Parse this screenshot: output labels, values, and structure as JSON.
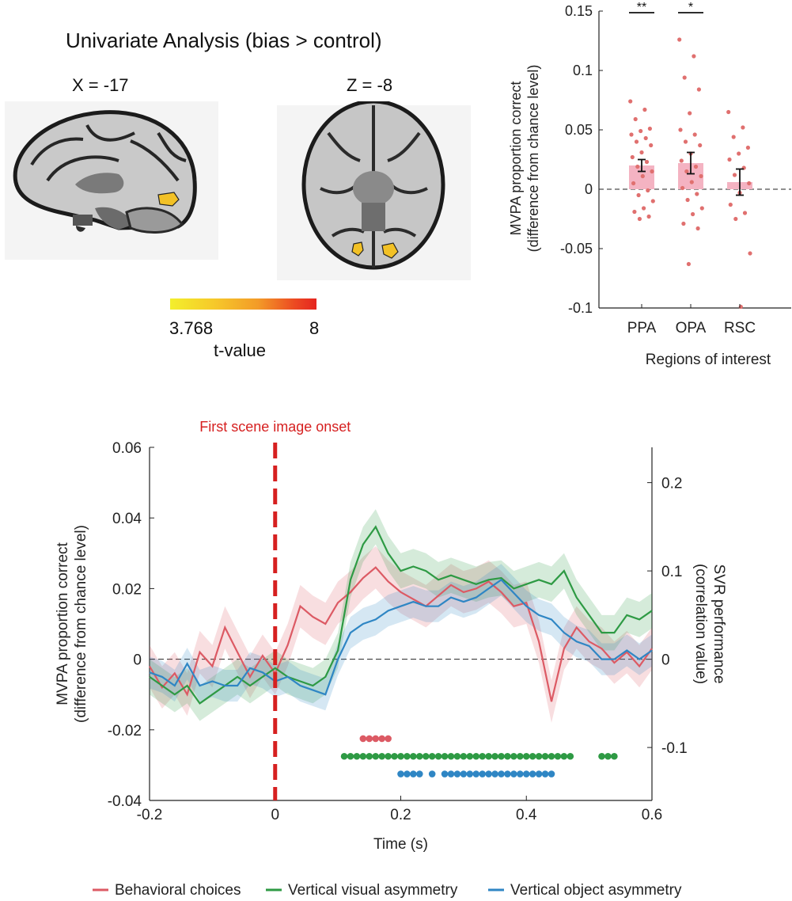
{
  "univariate": {
    "title": "Univariate Analysis (bias > control)",
    "sagittal_label": "X = -17",
    "axial_label": "Z = -8",
    "colorbar": {
      "min": "3.768",
      "max": "8",
      "label": "t-value",
      "colors": [
        "#f3ef2c",
        "#f39b28",
        "#e52520"
      ]
    }
  },
  "chart_data": [
    {
      "type": "bar",
      "title": "",
      "xlabel": "Regions of interest",
      "ylabel": [
        "MVPA proportion correct",
        "(difference from chance level)"
      ],
      "categories": [
        "PPA",
        "OPA",
        "RSC"
      ],
      "values": [
        0.02,
        0.022,
        0.006
      ],
      "sem": [
        0.005,
        0.009,
        0.011
      ],
      "significance": [
        "**",
        "*",
        ""
      ],
      "ylim": [
        -0.1,
        0.15
      ],
      "yticks": [
        -0.1,
        -0.05,
        0,
        0.05,
        0.1,
        0.15
      ],
      "ytick_labels": [
        "-0.1",
        "-0.05",
        "0",
        "0.05",
        "0.1",
        "0.15"
      ],
      "bar_color": "#f4b3c2",
      "point_color": "#e0706f",
      "individual_points": [
        [
          0.074,
          0.067,
          0.059,
          0.051,
          0.049,
          0.046,
          0.043,
          0.04,
          0.037,
          0.031,
          0.027,
          0.023,
          0.019,
          0.015,
          0.011,
          0.005,
          -0.001,
          -0.005,
          -0.01,
          -0.016,
          -0.019,
          -0.023,
          -0.025
        ],
        [
          0.126,
          0.112,
          0.094,
          0.084,
          0.064,
          0.05,
          0.046,
          0.04,
          0.037,
          0.03,
          0.024,
          0.019,
          0.015,
          0.011,
          0.006,
          0.001,
          -0.004,
          -0.009,
          -0.016,
          -0.021,
          -0.029,
          -0.033,
          -0.063
        ],
        [
          0.065,
          0.052,
          0.044,
          0.035,
          0.03,
          0.025,
          0.018,
          0.012,
          0.005,
          -0.003,
          -0.013,
          -0.02,
          -0.025,
          -0.054,
          -0.099
        ]
      ]
    },
    {
      "type": "line",
      "title": "",
      "xlabel": "Time (s)",
      "ylabel": [
        "MVPA proportion correct",
        "(difference from chance level)"
      ],
      "y2label": [
        "SVR performance",
        "(correlation value)"
      ],
      "annotation": "First scene image onset",
      "xlim": [
        -0.2,
        0.6
      ],
      "ylim": [
        -0.04,
        0.06
      ],
      "y2lim": [
        -0.16,
        0.24
      ],
      "xticks": [
        -0.2,
        0,
        0.2,
        0.4,
        0.6
      ],
      "xtick_labels": [
        "-0.2",
        "0",
        "0.2",
        "0.4",
        "0.6"
      ],
      "yticks": [
        -0.04,
        -0.02,
        0,
        0.02,
        0.04,
        0.06
      ],
      "ytick_labels": [
        "-0.04",
        "-0.02",
        "0",
        "0.02",
        "0.04",
        "0.06"
      ],
      "y2ticks": [
        -0.1,
        0,
        0.1,
        0.2
      ],
      "y2tick_labels": [
        "-0.1",
        "0",
        "0.1",
        "0.2"
      ],
      "onset_color": "#d62020",
      "x": [
        -0.2,
        -0.18,
        -0.16,
        -0.14,
        -0.12,
        -0.1,
        -0.08,
        -0.06,
        -0.04,
        -0.02,
        0,
        0.02,
        0.04,
        0.06,
        0.08,
        0.1,
        0.12,
        0.14,
        0.16,
        0.18,
        0.2,
        0.22,
        0.24,
        0.26,
        0.28,
        0.3,
        0.32,
        0.34,
        0.36,
        0.38,
        0.4,
        0.42,
        0.44,
        0.46,
        0.48,
        0.5,
        0.52,
        0.54,
        0.56,
        0.58,
        0.6
      ],
      "series": [
        {
          "name": "Behavioral choices",
          "axis": "left",
          "color": "#dc5a64",
          "band": 0.006,
          "values": [
            -0.002,
            -0.008,
            -0.004,
            -0.01,
            0.002,
            -0.002,
            0.009,
            0.002,
            -0.005,
            0.001,
            -0.004,
            0.004,
            0.015,
            0.012,
            0.01,
            0.016,
            0.019,
            0.023,
            0.026,
            0.022,
            0.019,
            0.017,
            0.015,
            0.018,
            0.021,
            0.019,
            0.02,
            0.022,
            0.019,
            0.015,
            0.016,
            0.005,
            -0.012,
            0.003,
            0.009,
            0.005,
            0.003,
            -0.001,
            0.002,
            -0.002,
            0.003
          ],
          "significance_x": [
            0.14,
            0.15,
            0.16,
            0.17,
            0.18
          ],
          "significance_y": -0.0225
        },
        {
          "name": "Vertical visual asymmetry",
          "axis": "right",
          "color": "#2e9a44",
          "band": 0.02,
          "values": [
            -0.02,
            -0.03,
            -0.04,
            -0.03,
            -0.05,
            -0.04,
            -0.03,
            -0.02,
            -0.03,
            -0.02,
            -0.01,
            -0.02,
            -0.025,
            -0.03,
            -0.02,
            0.01,
            0.09,
            0.13,
            0.15,
            0.12,
            0.1,
            0.105,
            0.1,
            0.09,
            0.095,
            0.09,
            0.085,
            0.09,
            0.092,
            0.08,
            0.085,
            0.09,
            0.085,
            0.1,
            0.07,
            0.05,
            0.03,
            0.03,
            0.05,
            0.045,
            0.055
          ],
          "significance_x": [
            0.11,
            0.12,
            0.13,
            0.14,
            0.15,
            0.16,
            0.17,
            0.18,
            0.19,
            0.2,
            0.21,
            0.22,
            0.23,
            0.24,
            0.25,
            0.26,
            0.27,
            0.28,
            0.29,
            0.3,
            0.31,
            0.32,
            0.33,
            0.34,
            0.35,
            0.36,
            0.37,
            0.38,
            0.39,
            0.4,
            0.41,
            0.42,
            0.43,
            0.44,
            0.45,
            0.46,
            0.47,
            0.52,
            0.53,
            0.54
          ],
          "significance_y": -0.0275
        },
        {
          "name": "Vertical object asymmetry",
          "axis": "right",
          "color": "#2f86c4",
          "band": 0.018,
          "values": [
            -0.015,
            -0.02,
            -0.03,
            -0.005,
            -0.03,
            -0.025,
            -0.03,
            -0.03,
            -0.01,
            -0.015,
            -0.025,
            -0.02,
            -0.03,
            -0.035,
            -0.04,
            0.0,
            0.03,
            0.04,
            0.045,
            0.055,
            0.06,
            0.065,
            0.06,
            0.06,
            0.07,
            0.065,
            0.07,
            0.08,
            0.09,
            0.075,
            0.06,
            0.05,
            0.045,
            0.03,
            0.02,
            0.015,
            0.0,
            0.0,
            0.01,
            0.0,
            0.01
          ],
          "significance_x": [
            0.2,
            0.21,
            0.22,
            0.23,
            0.25,
            0.27,
            0.28,
            0.29,
            0.3,
            0.31,
            0.32,
            0.33,
            0.34,
            0.35,
            0.36,
            0.37,
            0.38,
            0.39,
            0.4,
            0.41,
            0.42,
            0.43,
            0.44
          ],
          "significance_y": -0.0325
        }
      ],
      "legend": "bottom"
    }
  ]
}
